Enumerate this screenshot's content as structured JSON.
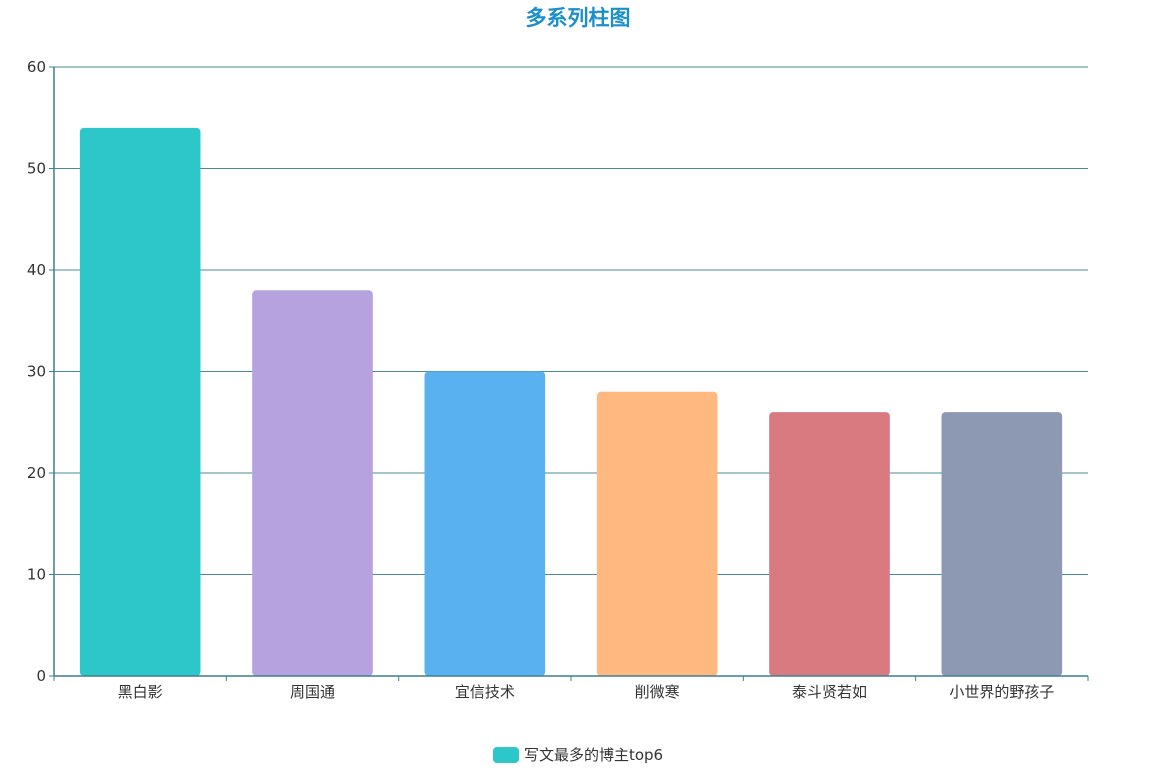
{
  "chart_data": {
    "type": "bar",
    "title": "多系列柱图",
    "categories": [
      "黑白影",
      "周国通",
      "宜信技术",
      "削微寒",
      "泰斗贤若如",
      "小世界的野孩子"
    ],
    "series": [
      {
        "name": "写文最多的博主top6",
        "values": [
          54,
          38,
          30,
          28,
          26,
          26
        ]
      }
    ],
    "colors": [
      "#2ec7c9",
      "#b6a2de",
      "#5ab1ef",
      "#ffb980",
      "#d87a80",
      "#8d98b3"
    ],
    "xlabel": "",
    "ylabel": "",
    "ylim": [
      0,
      60
    ],
    "yticks": [
      0,
      10,
      20,
      30,
      40,
      50,
      60
    ],
    "grid": true,
    "legend_position": "bottom-center"
  }
}
